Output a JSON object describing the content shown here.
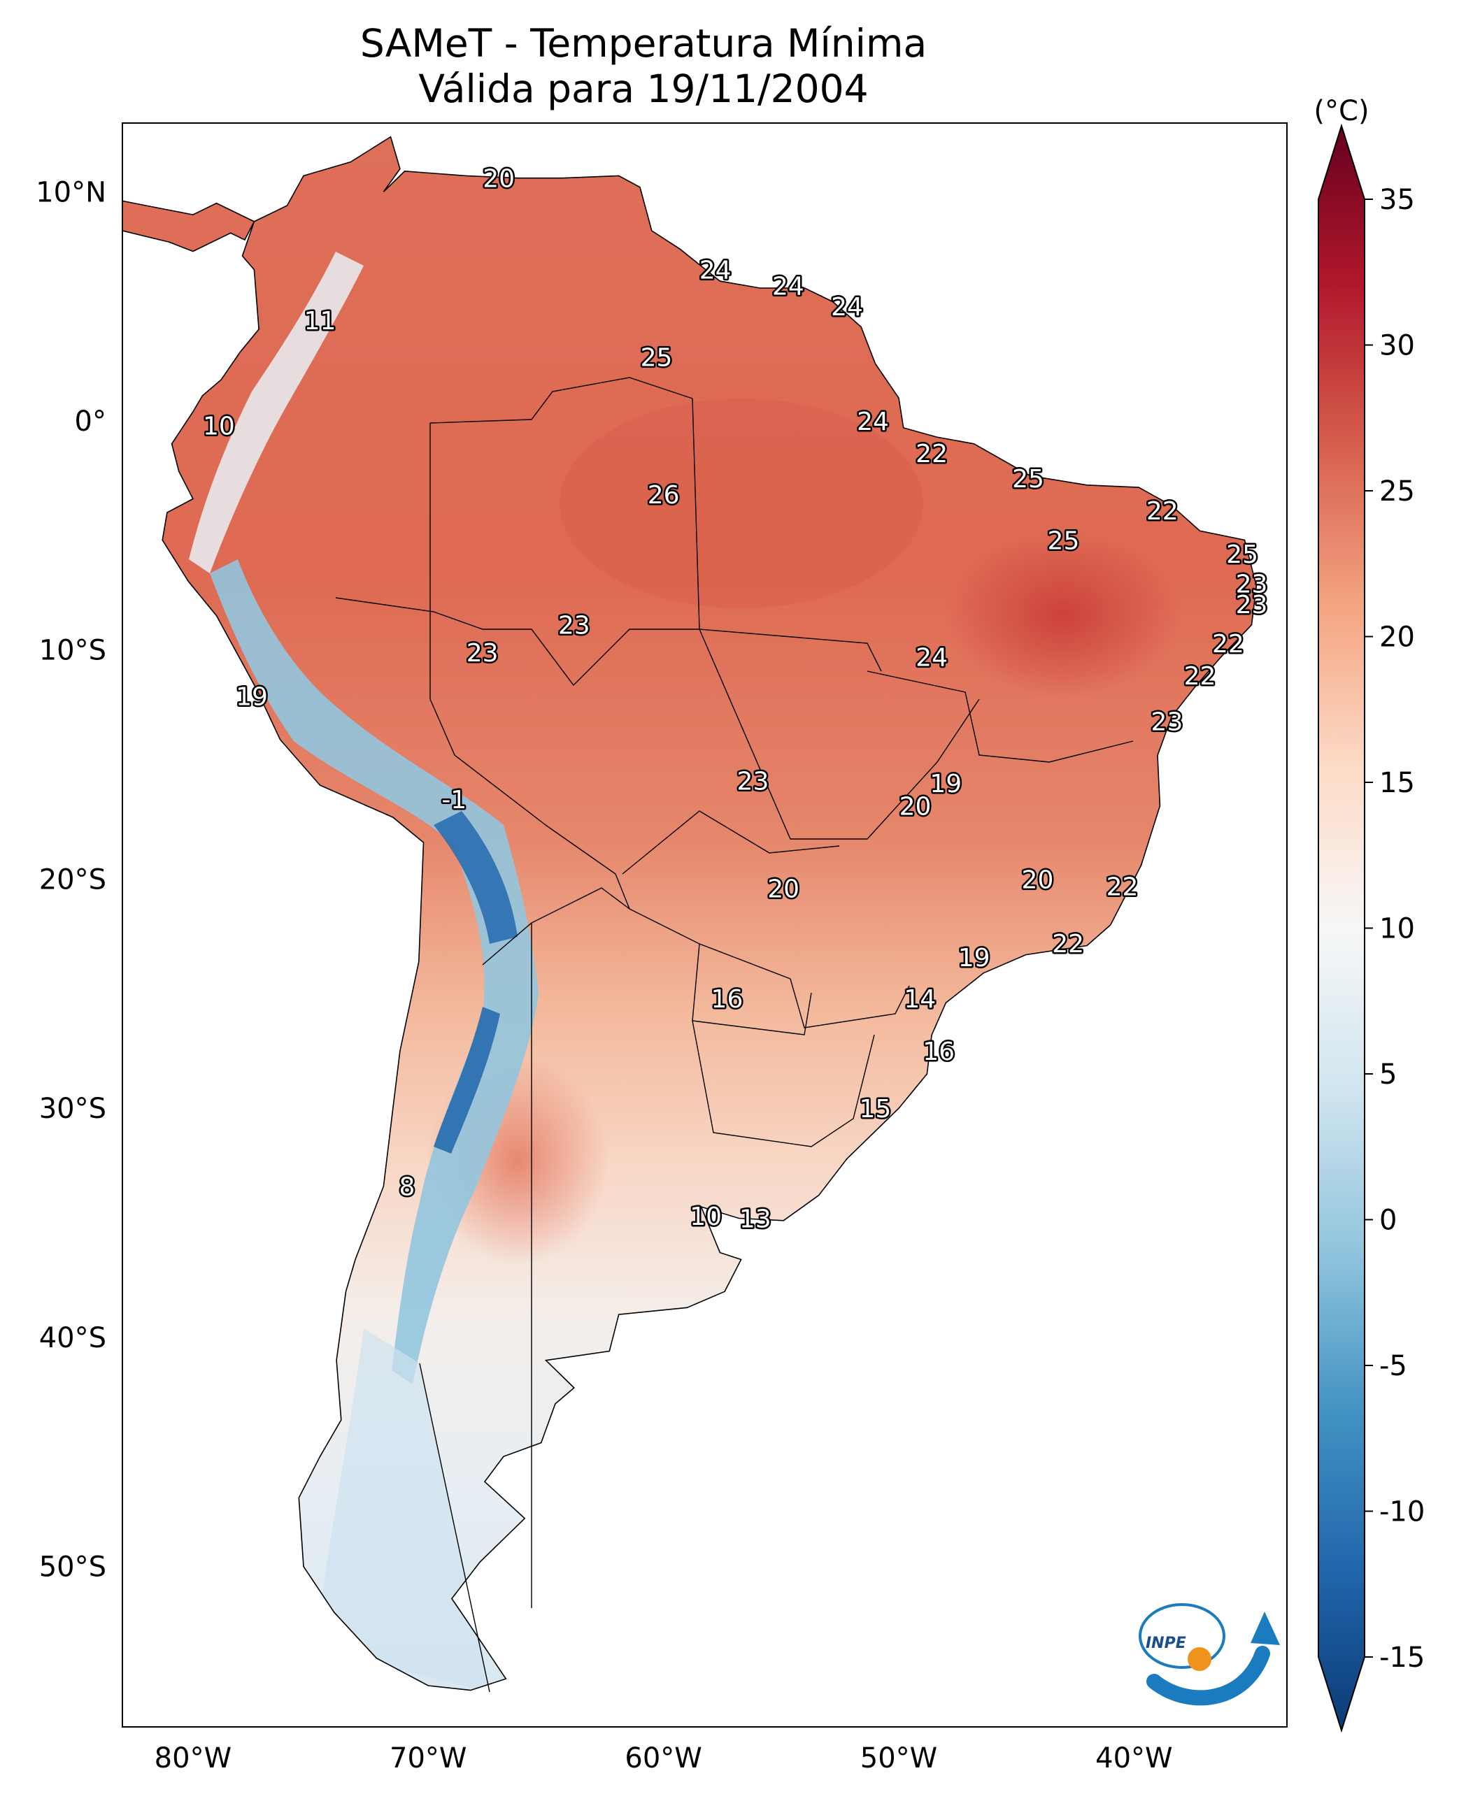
{
  "title": "SAMeT - Temperatura Mínima",
  "subtitle": "Válida para 19/11/2004",
  "colorbar": {
    "unit": "(°C)",
    "ticks": [
      "35",
      "30",
      "25",
      "20",
      "15",
      "10",
      "5",
      "0",
      "-5",
      "-10",
      "-15"
    ],
    "tick_values": [
      35,
      30,
      25,
      20,
      15,
      10,
      5,
      0,
      -5,
      -10,
      -15
    ],
    "range": [
      -15,
      35
    ],
    "colormap": "RdBu_r",
    "colors": [
      "#0b3b75",
      "#2166ac",
      "#4393c3",
      "#92c5de",
      "#d1e5f0",
      "#f7f7f7",
      "#fddbc7",
      "#f4a582",
      "#d6604d",
      "#b2182b",
      "#67001f"
    ]
  },
  "axes": {
    "lon_labels": [
      "80°W",
      "70°W",
      "60°W",
      "50°W",
      "40°W"
    ],
    "lon_values": [
      -80,
      -70,
      -60,
      -50,
      -40
    ],
    "lat_labels": [
      "10°N",
      "0°",
      "10°S",
      "20°S",
      "30°S",
      "40°S",
      "50°S"
    ],
    "lat_values": [
      10,
      0,
      -10,
      -20,
      -30,
      -40,
      -50
    ],
    "extent": {
      "lon": [
        -83,
        -33.5
      ],
      "lat": [
        -57,
        13
      ]
    }
  },
  "labels": [
    {
      "text": "20",
      "lon": -67,
      "lat": 10.6
    },
    {
      "text": "24",
      "lon": -57.8,
      "lat": 6.6
    },
    {
      "text": "24",
      "lon": -54.7,
      "lat": 5.9
    },
    {
      "text": "24",
      "lon": -52.2,
      "lat": 5.0
    },
    {
      "text": "11",
      "lon": -74.6,
      "lat": 4.4
    },
    {
      "text": "25",
      "lon": -60.3,
      "lat": 2.8
    },
    {
      "text": "10",
      "lon": -78.9,
      "lat": -0.2
    },
    {
      "text": "24",
      "lon": -51.1,
      "lat": 0.0
    },
    {
      "text": "22",
      "lon": -48.6,
      "lat": -1.4
    },
    {
      "text": "25",
      "lon": -44.5,
      "lat": -2.5
    },
    {
      "text": "26",
      "lon": -60.0,
      "lat": -3.2
    },
    {
      "text": "22",
      "lon": -38.8,
      "lat": -3.9
    },
    {
      "text": "25",
      "lon": -43.0,
      "lat": -5.2
    },
    {
      "text": "25",
      "lon": -35.4,
      "lat": -5.8
    },
    {
      "text": "23",
      "lon": -35.0,
      "lat": -7.1
    },
    {
      "text": "23",
      "lon": -35.0,
      "lat": -8.0
    },
    {
      "text": "23",
      "lon": -63.8,
      "lat": -8.9
    },
    {
      "text": "22",
      "lon": -36.0,
      "lat": -9.7
    },
    {
      "text": "23",
      "lon": -67.7,
      "lat": -10.1
    },
    {
      "text": "24",
      "lon": -48.6,
      "lat": -10.3
    },
    {
      "text": "22",
      "lon": -37.2,
      "lat": -11.1
    },
    {
      "text": "19",
      "lon": -77.5,
      "lat": -12.0
    },
    {
      "text": "23",
      "lon": -38.6,
      "lat": -13.1
    },
    {
      "text": "23",
      "lon": -56.2,
      "lat": -15.7
    },
    {
      "text": "19",
      "lon": -48.0,
      "lat": -15.8
    },
    {
      "text": "20",
      "lon": -49.3,
      "lat": -16.8
    },
    {
      "text": "-1",
      "lon": -68.9,
      "lat": -16.5
    },
    {
      "text": "20",
      "lon": -44.1,
      "lat": -20.0
    },
    {
      "text": "22",
      "lon": -40.5,
      "lat": -20.3
    },
    {
      "text": "20",
      "lon": -54.9,
      "lat": -20.4
    },
    {
      "text": "22",
      "lon": -42.8,
      "lat": -22.8
    },
    {
      "text": "19",
      "lon": -46.8,
      "lat": -23.4
    },
    {
      "text": "16",
      "lon": -57.3,
      "lat": -25.2
    },
    {
      "text": "14",
      "lon": -49.1,
      "lat": -25.2
    },
    {
      "text": "16",
      "lon": -48.3,
      "lat": -27.5
    },
    {
      "text": "15",
      "lon": -51.0,
      "lat": -30.0
    },
    {
      "text": "8",
      "lon": -70.9,
      "lat": -33.4
    },
    {
      "text": "10",
      "lon": -58.2,
      "lat": -34.7
    },
    {
      "text": "13",
      "lon": -56.1,
      "lat": -34.8
    }
  ]
}
